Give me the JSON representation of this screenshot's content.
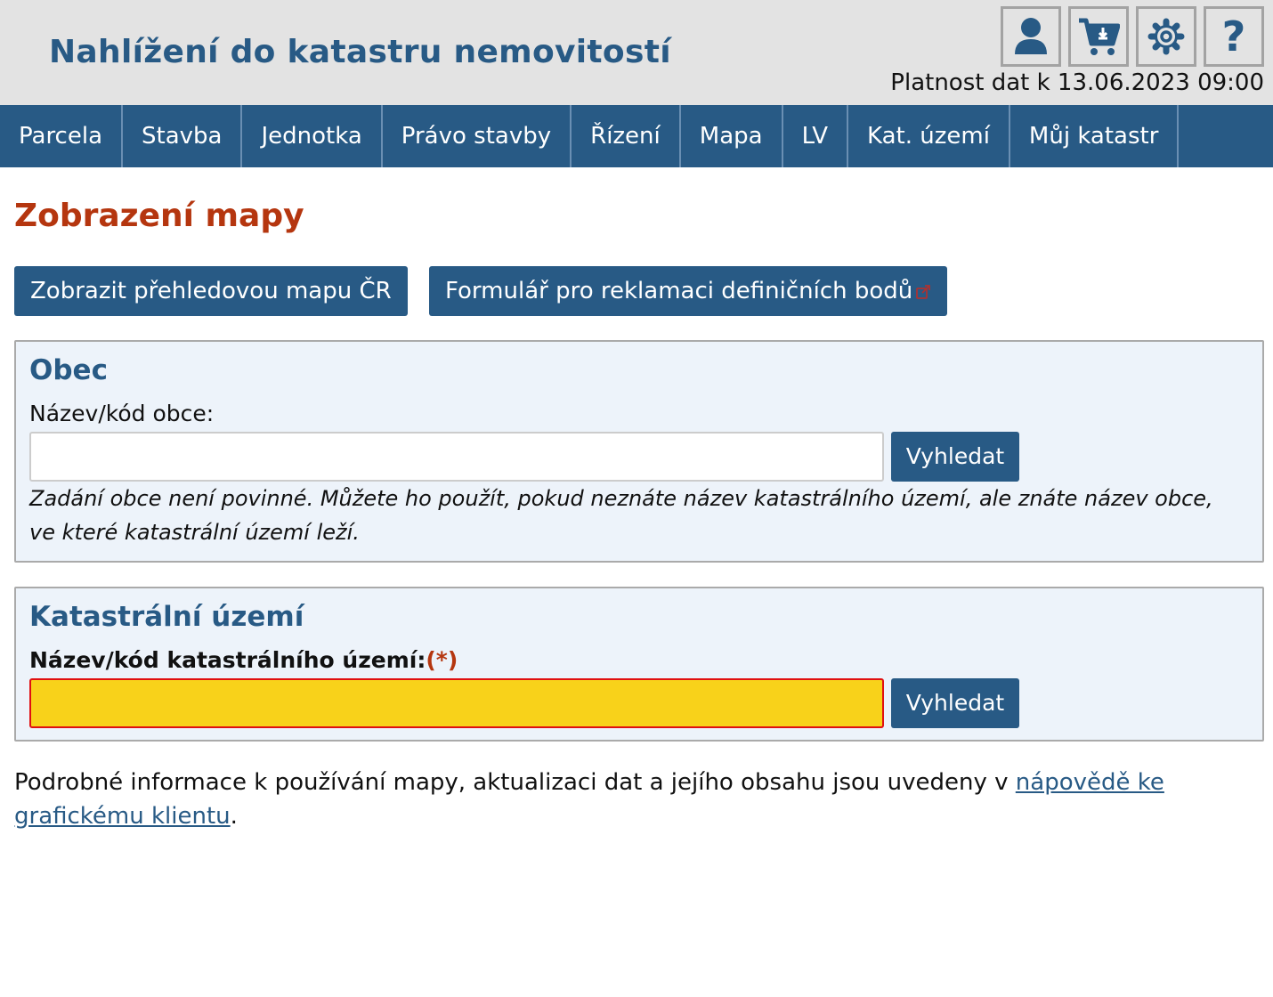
{
  "header": {
    "title": "Nahlížení do katastru nemovitostí",
    "validity": "Platnost dat k 13.06.2023 09:00",
    "icons": [
      "user-icon",
      "cart-download-icon",
      "gear-icon",
      "help-icon"
    ]
  },
  "nav": {
    "items": [
      "Parcela",
      "Stavba",
      "Jednotka",
      "Právo stavby",
      "Řízení",
      "Mapa",
      "LV",
      "Kat. území",
      "Můj katastr"
    ]
  },
  "page": {
    "title": "Zobrazení mapy",
    "overview_button": "Zobrazit přehledovou mapu ČR",
    "complaint_button": "Formulář pro reklamaci definičních bodů"
  },
  "obec": {
    "heading": "Obec",
    "label": "Název/kód obce:",
    "value": "",
    "search": "Vyhledat",
    "hint": "Zadání obce není povinné. Můžete ho použít, pokud neznáte název katastrálního území, ale znáte název obce, ve které katastrální území leží."
  },
  "ku": {
    "heading": "Katastrální území",
    "label": "Název/kód katastrálního území:",
    "required_mark": "(*)",
    "value": "",
    "search": "Vyhledat"
  },
  "info": {
    "text": "Podrobné informace k používání mapy, aktualizaci dat a jejího obsahu jsou uvedeny v ",
    "link": "nápovědě ke grafickému klientu",
    "end": "."
  },
  "colors": {
    "brand": "#285a85",
    "heading": "#b5360f",
    "required_field": "#f8d21a"
  }
}
